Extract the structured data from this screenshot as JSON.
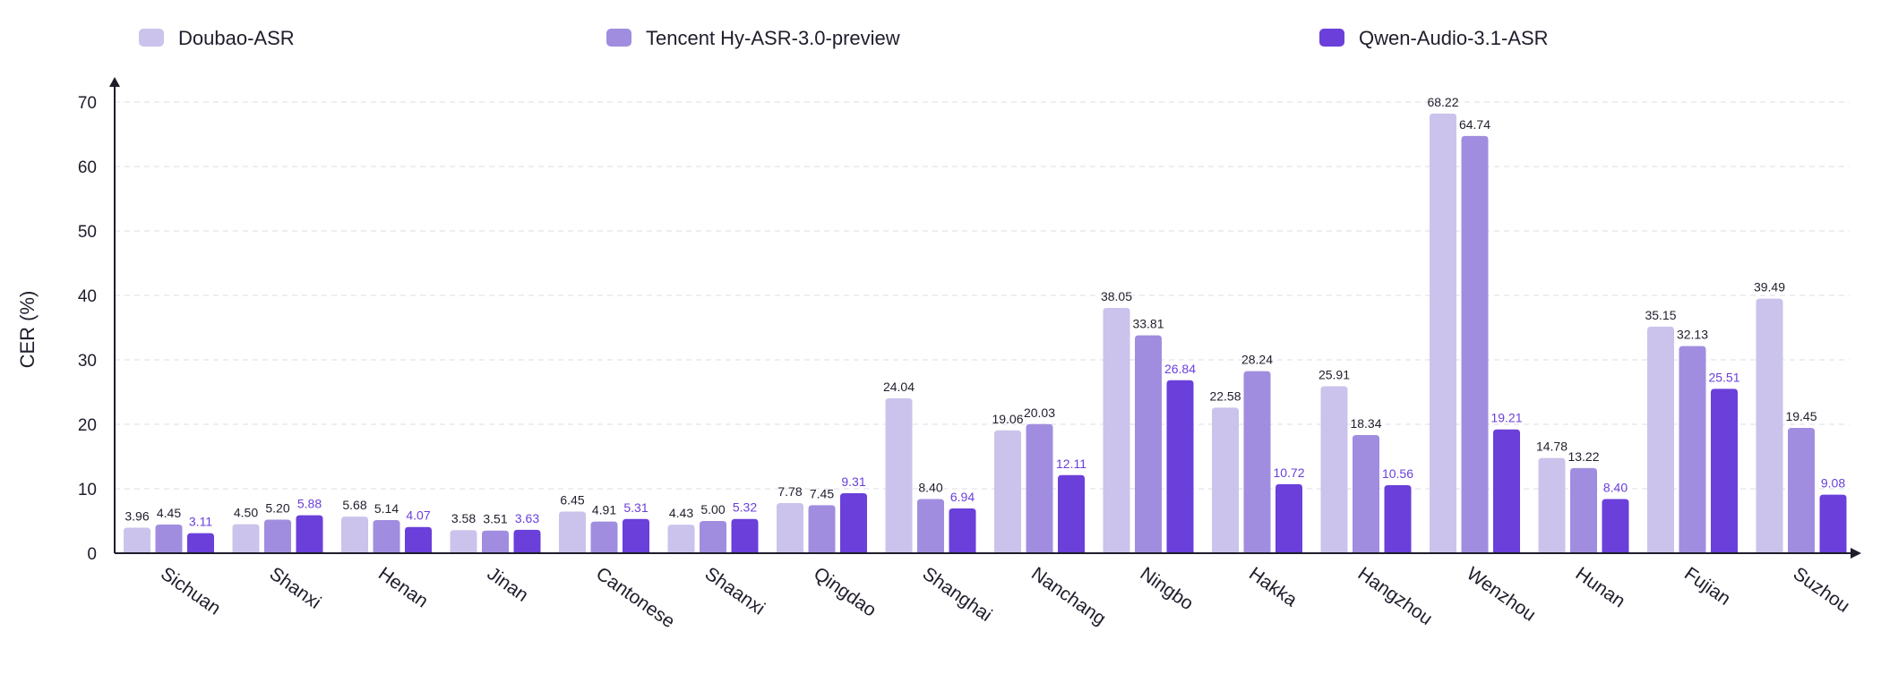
{
  "chart_data": {
    "type": "bar",
    "ylabel": "CER (%)",
    "xlabel": "",
    "ylim": [
      0,
      73
    ],
    "yticks": [
      0,
      10,
      20,
      30,
      40,
      50,
      60,
      70
    ],
    "grid": "horizontal dashed",
    "legend_position": "top",
    "categories": [
      "Sichuan",
      "Shanxi",
      "Henan",
      "Jinan",
      "Cantonese",
      "Shaanxi",
      "Qingdao",
      "Shanghai",
      "Nanchang",
      "Ningbo",
      "Hakka",
      "Hangzhou",
      "Wenzhou",
      "Hunan",
      "Fujian",
      "Suzhou"
    ],
    "series": [
      {
        "name": "Doubao-ASR",
        "color": "#cbc3eb",
        "values": [
          3.96,
          4.5,
          5.68,
          3.58,
          6.45,
          4.43,
          7.78,
          24.04,
          19.06,
          38.05,
          22.58,
          25.91,
          68.22,
          14.78,
          35.15,
          39.49
        ],
        "labels": [
          "3.96",
          "4.50",
          "5.68",
          "3.58",
          "6.45",
          "4.43",
          "7.78",
          "24.04",
          "19.06",
          "38.05",
          "22.58",
          "25.91",
          "68.22",
          "14.78",
          "35.15",
          "39.49"
        ],
        "label_color": "#1f1d2b"
      },
      {
        "name": "Tencent Hy-ASR-3.0-preview",
        "color": "#a18ddf",
        "values": [
          4.45,
          5.2,
          5.14,
          3.51,
          4.91,
          5.0,
          7.45,
          8.4,
          20.03,
          33.81,
          28.24,
          18.34,
          64.74,
          13.22,
          32.13,
          19.45
        ],
        "labels": [
          "4.45",
          "5.20",
          "5.14",
          "3.51",
          "4.91",
          "5.00",
          "7.45",
          "8.40",
          "20.03",
          "33.81",
          "28.24",
          "18.34",
          "64.74",
          "13.22",
          "32.13",
          "19.45"
        ],
        "label_color": "#1f1d2b"
      },
      {
        "name": "Qwen-Audio-3.1-ASR",
        "color": "#6a3fda",
        "values": [
          3.11,
          5.88,
          4.07,
          3.63,
          5.31,
          5.32,
          9.31,
          6.94,
          12.11,
          26.84,
          10.72,
          10.56,
          19.21,
          8.4,
          25.51,
          9.08
        ],
        "labels": [
          "3.11",
          "5.88",
          "4.07",
          "3.63",
          "5.31",
          "5.32",
          "9.31",
          "6.94",
          "12.11",
          "26.84",
          "10.72",
          "10.56",
          "19.21",
          "8.40",
          "25.51",
          "9.08"
        ],
        "label_color": "#6a3fda"
      }
    ]
  }
}
